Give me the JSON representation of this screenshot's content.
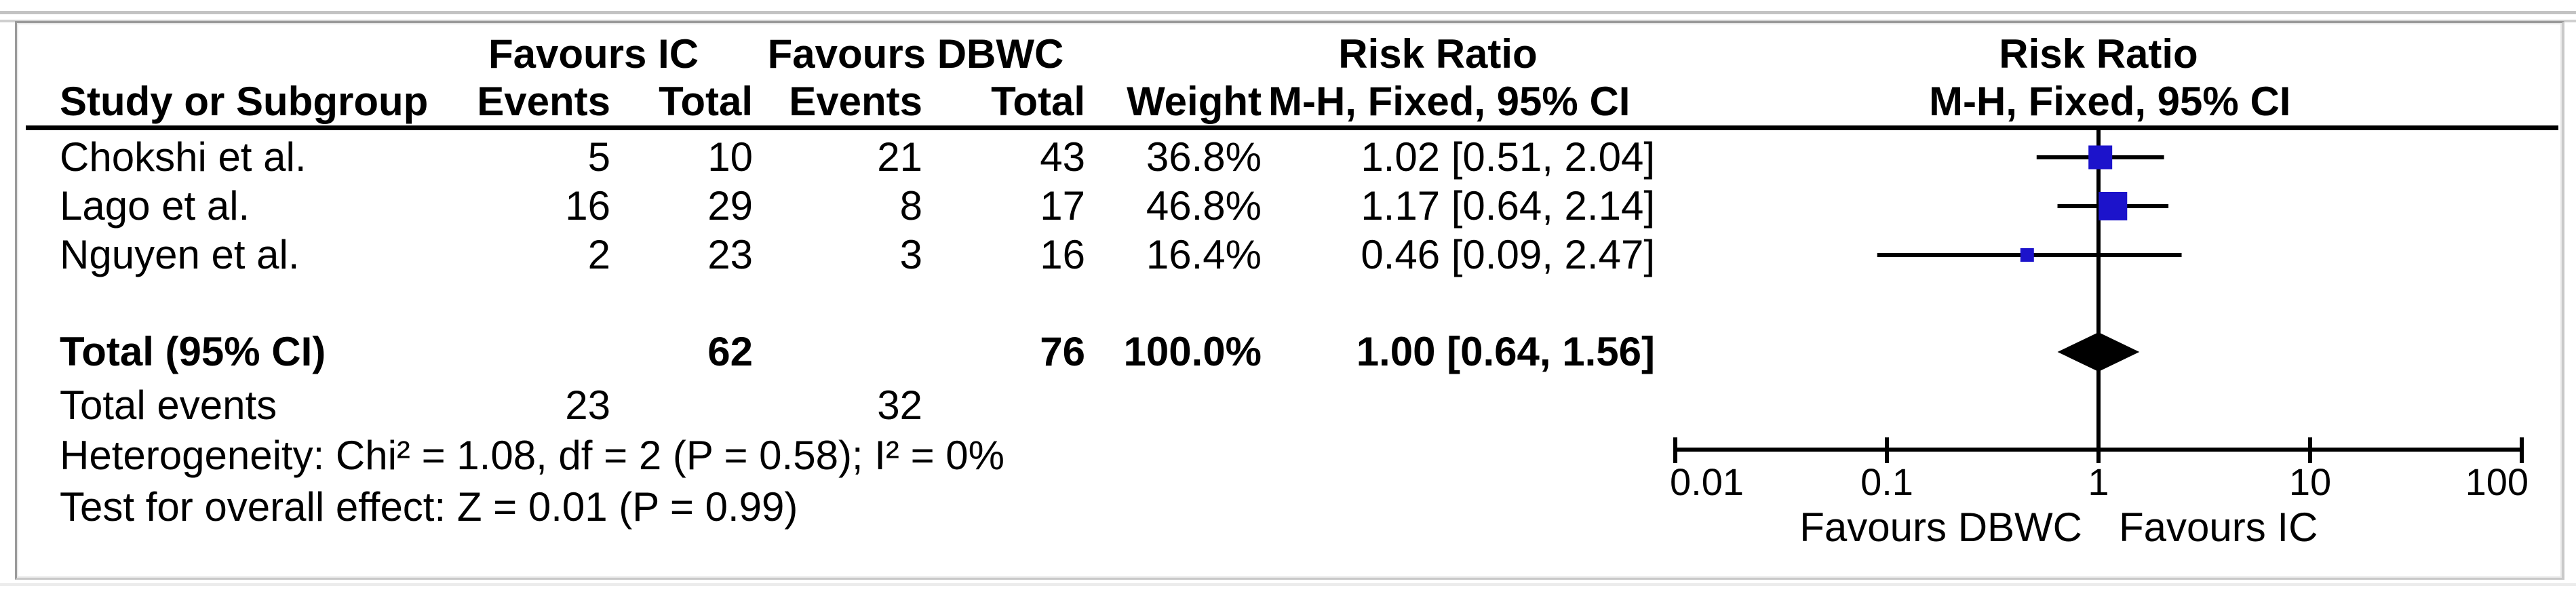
{
  "table": {
    "group_headers": {
      "favours_ic": "Favours IC",
      "favours_dbwc": "Favours DBWC",
      "risk_ratio_text": "Risk Ratio",
      "risk_ratio_plot": "Risk Ratio"
    },
    "col_headers": {
      "study": "Study or Subgroup",
      "events_ic": "Events",
      "total_ic": "Total",
      "events_dbwc": "Events",
      "total_dbwc": "Total",
      "weight": "Weight",
      "method_text": "M-H, Fixed, 95% CI",
      "method_plot": "M-H, Fixed, 95% CI"
    },
    "studies": [
      {
        "name": "Chokshi et al.",
        "events_ic": "5",
        "total_ic": "10",
        "events_dbwc": "21",
        "total_dbwc": "43",
        "weight": "36.8%",
        "rr_ci": "1.02 [0.51, 2.04]"
      },
      {
        "name": "Lago et al.",
        "events_ic": "16",
        "total_ic": "29",
        "events_dbwc": "8",
        "total_dbwc": "17",
        "weight": "46.8%",
        "rr_ci": "1.17 [0.64, 2.14]"
      },
      {
        "name": "Nguyen et al.",
        "events_ic": "2",
        "total_ic": "23",
        "events_dbwc": "3",
        "total_dbwc": "16",
        "weight": "16.4%",
        "rr_ci": "0.46 [0.09, 2.47]"
      }
    ],
    "total_row": {
      "label": "Total (95% CI)",
      "total_ic": "62",
      "total_dbwc": "76",
      "weight": "100.0%",
      "rr_ci": "1.00 [0.64, 1.56]"
    },
    "total_events_row": {
      "label": "Total events",
      "events_ic": "23",
      "events_dbwc": "32"
    },
    "heterogeneity": "Heterogeneity: Chi² = 1.08, df = 2 (P = 0.58); I² = 0%",
    "overall_effect": "Test for overall effect: Z = 0.01 (P = 0.99)"
  },
  "chart_data": {
    "type": "forest",
    "effect_measure": "Risk Ratio",
    "method": "M-H, Fixed, 95% CI",
    "x_scale": "log10",
    "axis": {
      "min": 0.01,
      "max": 100,
      "ticks": [
        0.01,
        0.1,
        1,
        10,
        100
      ],
      "tick_labels": [
        "0.01",
        "0.1",
        "1",
        "10",
        "100"
      ]
    },
    "footer_left_label": "Favours DBWC",
    "footer_right_label": "Favours IC",
    "studies": [
      {
        "name": "Chokshi et al.",
        "rr": 1.02,
        "ci_low": 0.51,
        "ci_high": 2.04,
        "weight_pct": 36.8
      },
      {
        "name": "Lago et al.",
        "rr": 1.17,
        "ci_low": 0.64,
        "ci_high": 2.14,
        "weight_pct": 46.8
      },
      {
        "name": "Nguyen et al.",
        "rr": 0.46,
        "ci_low": 0.09,
        "ci_high": 2.47,
        "weight_pct": 16.4
      }
    ],
    "total": {
      "label": "Total (95% CI)",
      "rr": 1.0,
      "ci_low": 0.64,
      "ci_high": 1.56
    },
    "colors": {
      "study_marker": "#1C13CB",
      "summary_diamond": "#000000",
      "line": "#000000"
    }
  }
}
